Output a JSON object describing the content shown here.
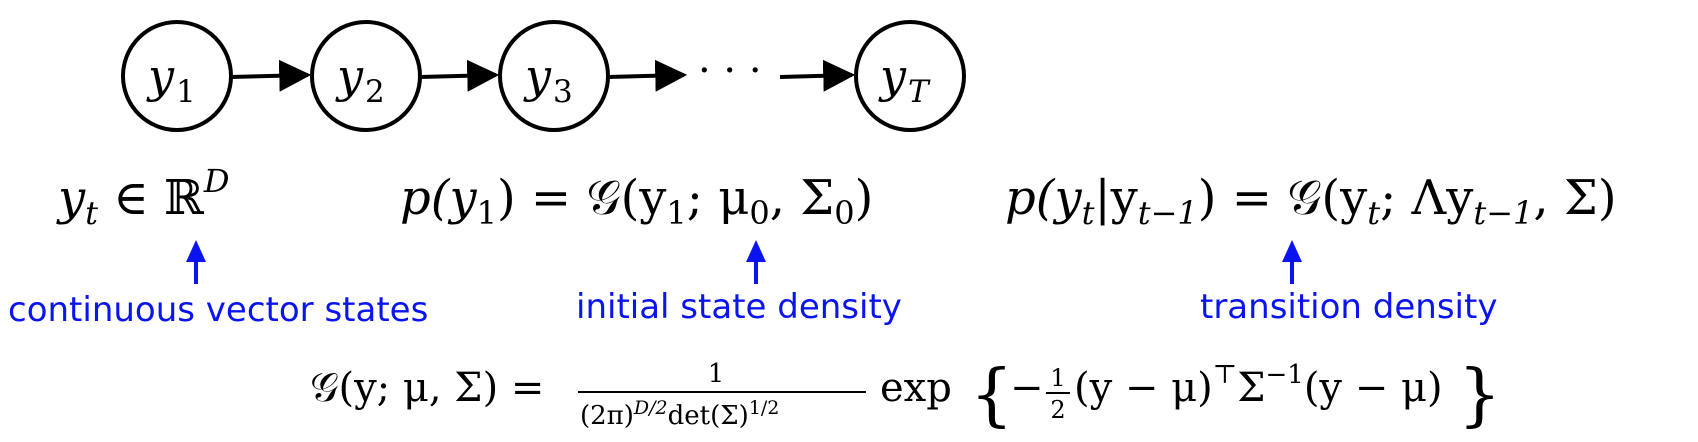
{
  "chain": {
    "nodes": [
      {
        "base": "y",
        "sub": "1"
      },
      {
        "base": "y",
        "sub": "2"
      },
      {
        "base": "y",
        "sub": "3"
      },
      {
        "base": "y",
        "sub": "T"
      }
    ],
    "ellipsis": "· · ·"
  },
  "equations": {
    "state_space": {
      "base": "y",
      "sub": "t",
      "rel": " ∈ ℝ",
      "sup": "D"
    },
    "initial": {
      "p": "p(y",
      "p_sub": "1",
      "eq": ") = 𝒢(y",
      "arg_sub": "1",
      "sep": "; μ",
      "mu_sub": "0",
      "comma": ", Σ",
      "sig_sub": "0",
      "close": ")"
    },
    "transition": {
      "p": "p(y",
      "t_sub": "t",
      "bar": "|y",
      "tm1_sub": "t−1",
      "eq": ") = 𝒢(y",
      "t_sub2": "t",
      "sep": "; Λy",
      "tm1_sub2": "t−1",
      "close": ", Σ)"
    },
    "gaussian": {
      "lhs": "𝒢(y; μ, Σ) =",
      "numerator": "1",
      "den_a": "(2π)",
      "den_sup": "D/2",
      "den_b": "det(Σ)",
      "den_sup2": "1/2",
      "exp": "exp",
      "brace_open": "{",
      "inner_a": "−",
      "half_num": "1",
      "half_den": "2",
      "inner_b": "(y − μ)",
      "inner_sup_T": "⊤",
      "inner_c": "Σ",
      "inner_sup_inv": "−1",
      "inner_d": "(y − μ)",
      "brace_close": "}"
    }
  },
  "annotations": {
    "state_space": "continuous vector states",
    "initial": "initial state density",
    "transition": "transition density"
  },
  "colors": {
    "annotation": "#0a14f0",
    "stroke": "#000000"
  }
}
